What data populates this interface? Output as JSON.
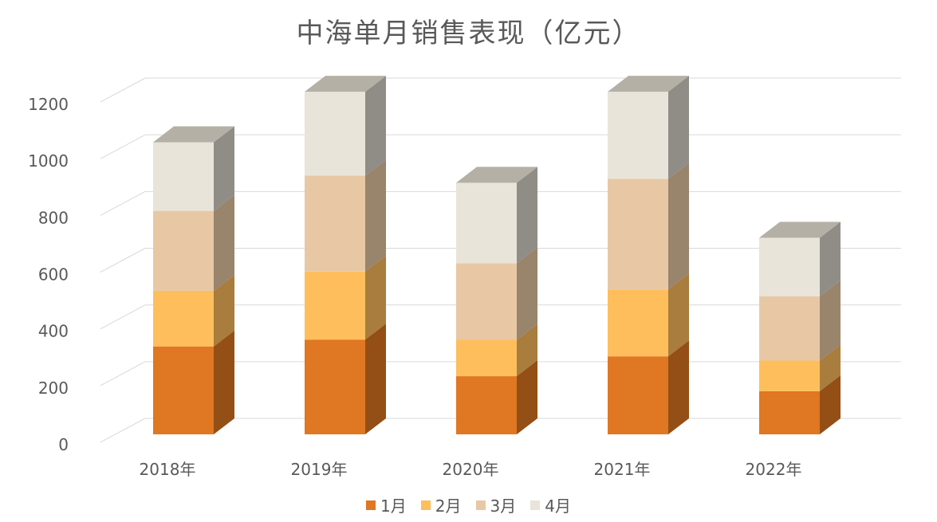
{
  "chart_data": {
    "type": "bar",
    "stacked": true,
    "three_d": true,
    "title": "中海单月销售表现（亿元）",
    "categories": [
      "2018年",
      "2019年",
      "2020年",
      "2021年",
      "2022年"
    ],
    "series": [
      {
        "name": "1月",
        "values": [
          310,
          334,
          205,
          275,
          152
        ],
        "color": "#E07722"
      },
      {
        "name": "2月",
        "values": [
          196,
          240,
          128,
          236,
          108
        ],
        "color": "#FFBE5C"
      },
      {
        "name": "3月",
        "values": [
          282,
          338,
          270,
          390,
          227
        ],
        "color": "#E8C8A4"
      },
      {
        "name": "4月",
        "values": [
          242,
          296,
          284,
          307,
          206
        ],
        "color": "#E8E4DA"
      }
    ],
    "y_ticks": [
      "0",
      "200",
      "400",
      "600",
      "800",
      "1000",
      "1200"
    ],
    "ylim": [
      0,
      1200
    ],
    "grid": true,
    "legend_position": "bottom"
  }
}
